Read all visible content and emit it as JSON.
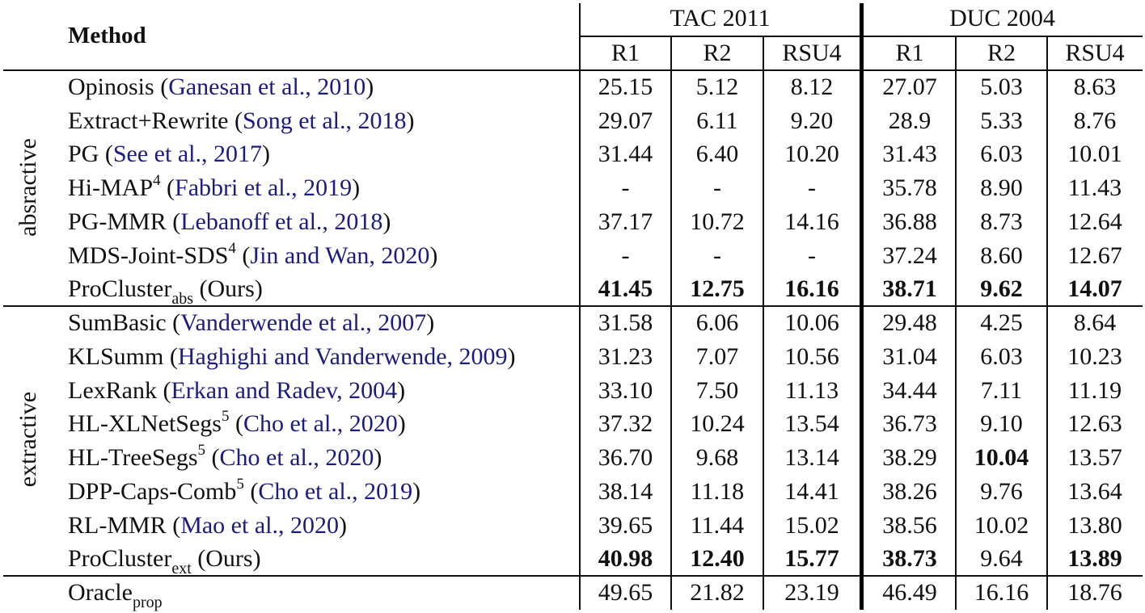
{
  "header": {
    "method": "Method",
    "groups": [
      {
        "label": "TAC 2011",
        "cols": [
          "R1",
          "R2",
          "RSU4"
        ]
      },
      {
        "label": "DUC 2004",
        "cols": [
          "R1",
          "R2",
          "RSU4"
        ]
      }
    ]
  },
  "colors": {
    "citation": "#1c1c80",
    "text": "#111111"
  },
  "sections": [
    {
      "label": "absractive",
      "rows": [
        {
          "name": "Opinosis",
          "sup": "",
          "sub": "",
          "cite": "Ganesan et al., 2010",
          "suffix": "",
          "values": [
            "25.15",
            "5.12",
            "8.12",
            "27.07",
            "5.03",
            "8.63"
          ],
          "bold": [
            false,
            false,
            false,
            false,
            false,
            false
          ]
        },
        {
          "name": "Extract+Rewrite",
          "sup": "",
          "sub": "",
          "cite": "Song et al., 2018",
          "suffix": "",
          "values": [
            "29.07",
            "6.11",
            "9.20",
            "28.9",
            "5.33",
            "8.76"
          ],
          "bold": [
            false,
            false,
            false,
            false,
            false,
            false
          ]
        },
        {
          "name": "PG",
          "sup": "",
          "sub": "",
          "cite": "See et al., 2017",
          "suffix": "",
          "values": [
            "31.44",
            "6.40",
            "10.20",
            "31.43",
            "6.03",
            "10.01"
          ],
          "bold": [
            false,
            false,
            false,
            false,
            false,
            false
          ]
        },
        {
          "name": "Hi-MAP",
          "sup": "4",
          "sub": "",
          "cite": "Fabbri et al., 2019",
          "suffix": "",
          "values": [
            "-",
            "-",
            "-",
            "35.78",
            "8.90",
            "11.43"
          ],
          "bold": [
            false,
            false,
            false,
            false,
            false,
            false
          ]
        },
        {
          "name": "PG-MMR",
          "sup": "",
          "sub": "",
          "cite": "Lebanoff et al., 2018",
          "suffix": "",
          "values": [
            "37.17",
            "10.72",
            "14.16",
            "36.88",
            "8.73",
            "12.64"
          ],
          "bold": [
            false,
            false,
            false,
            false,
            false,
            false
          ]
        },
        {
          "name": "MDS-Joint-SDS",
          "sup": "4",
          "sub": "",
          "cite": "Jin and Wan, 2020",
          "suffix": "",
          "values": [
            "-",
            "-",
            "-",
            "37.24",
            "8.60",
            "12.67"
          ],
          "bold": [
            false,
            false,
            false,
            false,
            false,
            false
          ]
        },
        {
          "name": "ProCluster",
          "sup": "",
          "sub": "abs",
          "cite": "",
          "suffix": "(Ours)",
          "values": [
            "41.45",
            "12.75",
            "16.16",
            "38.71",
            "9.62",
            "14.07"
          ],
          "bold": [
            true,
            true,
            true,
            true,
            true,
            true
          ]
        }
      ]
    },
    {
      "label": "extractive",
      "rows": [
        {
          "name": "SumBasic",
          "sup": "",
          "sub": "",
          "cite": "Vanderwende et al., 2007",
          "suffix": "",
          "values": [
            "31.58",
            "6.06",
            "10.06",
            "29.48",
            "4.25",
            "8.64"
          ],
          "bold": [
            false,
            false,
            false,
            false,
            false,
            false
          ]
        },
        {
          "name": "KLSumm",
          "sup": "",
          "sub": "",
          "cite": "Haghighi and Vanderwende, 2009",
          "suffix": "",
          "values": [
            "31.23",
            "7.07",
            "10.56",
            "31.04",
            "6.03",
            "10.23"
          ],
          "bold": [
            false,
            false,
            false,
            false,
            false,
            false
          ]
        },
        {
          "name": "LexRank",
          "sup": "",
          "sub": "",
          "cite": "Erkan and Radev, 2004",
          "suffix": "",
          "values": [
            "33.10",
            "7.50",
            "11.13",
            "34.44",
            "7.11",
            "11.19"
          ],
          "bold": [
            false,
            false,
            false,
            false,
            false,
            false
          ]
        },
        {
          "name": "HL-XLNetSegs",
          "sup": "5",
          "sub": "",
          "cite": "Cho et al., 2020",
          "suffix": "",
          "values": [
            "37.32",
            "10.24",
            "13.54",
            "36.73",
            "9.10",
            "12.63"
          ],
          "bold": [
            false,
            false,
            false,
            false,
            false,
            false
          ]
        },
        {
          "name": "HL-TreeSegs",
          "sup": "5",
          "sub": "",
          "cite": "Cho et al., 2020",
          "suffix": "",
          "values": [
            "36.70",
            "9.68",
            "13.14",
            "38.29",
            "10.04",
            "13.57"
          ],
          "bold": [
            false,
            false,
            false,
            false,
            true,
            false
          ]
        },
        {
          "name": "DPP-Caps-Comb",
          "sup": "5",
          "sub": "",
          "cite": "Cho et al., 2019",
          "suffix": "",
          "values": [
            "38.14",
            "11.18",
            "14.41",
            "38.26",
            "9.76",
            "13.64"
          ],
          "bold": [
            false,
            false,
            false,
            false,
            false,
            false
          ]
        },
        {
          "name": "RL-MMR",
          "sup": "",
          "sub": "",
          "cite": "Mao et al., 2020",
          "suffix": "",
          "values": [
            "39.65",
            "11.44",
            "15.02",
            "38.56",
            "10.02",
            "13.80"
          ],
          "bold": [
            false,
            false,
            false,
            false,
            false,
            false
          ]
        },
        {
          "name": "ProCluster",
          "sup": "",
          "sub": "ext",
          "cite": "",
          "suffix": "(Ours)",
          "values": [
            "40.98",
            "12.40",
            "15.77",
            "38.73",
            "9.64",
            "13.89"
          ],
          "bold": [
            true,
            true,
            true,
            true,
            false,
            true
          ]
        }
      ]
    },
    {
      "label": "",
      "rows": [
        {
          "name": "Oracle",
          "sup": "",
          "sub": "prop",
          "cite": "",
          "suffix": "",
          "values": [
            "49.65",
            "21.82",
            "23.19",
            "46.49",
            "16.16",
            "18.76"
          ],
          "bold": [
            false,
            false,
            false,
            false,
            false,
            false
          ]
        }
      ]
    }
  ]
}
